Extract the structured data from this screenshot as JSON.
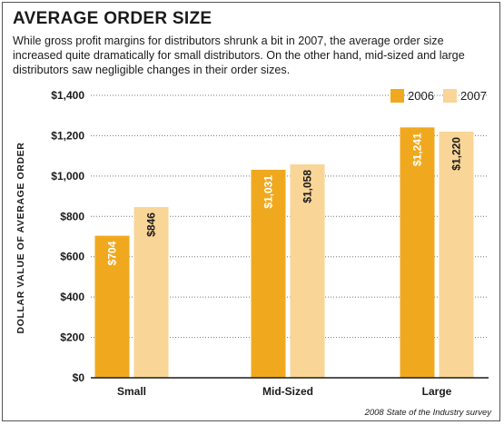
{
  "chart_data": {
    "type": "bar",
    "title": "AVERAGE ORDER SIZE",
    "subtitle": "While gross profit margins for distributors shrunk a bit in 2007, the average order size increased quite dramatically for small distributors. On the other hand, mid-sized and large distributors saw negligible changes in their order sizes.",
    "xlabel": "",
    "ylabel": "DOLLAR VALUE OF AVERAGE ORDER",
    "categories": [
      "Small",
      "Mid-Sized",
      "Large"
    ],
    "series": [
      {
        "name": "2006",
        "values": [
          704,
          1031,
          1241
        ],
        "labels": [
          "$704",
          "$1,031",
          "$1,241"
        ],
        "color": "#f0a91e"
      },
      {
        "name": "2007",
        "values": [
          846,
          1058,
          1220
        ],
        "labels": [
          "$846",
          "$1,058",
          "$1,220"
        ],
        "color": "#f9d597"
      }
    ],
    "yticks": [
      0,
      200,
      400,
      600,
      800,
      1000,
      1200,
      1400
    ],
    "ytick_labels": [
      "$0",
      "$200",
      "$400",
      "$600",
      "$800",
      "$1,000",
      "$1,200",
      "$1,400"
    ],
    "ylim": [
      0,
      1400
    ],
    "grid": true,
    "legend_position": "top-right",
    "source": "2008 State of the Industry survey"
  }
}
